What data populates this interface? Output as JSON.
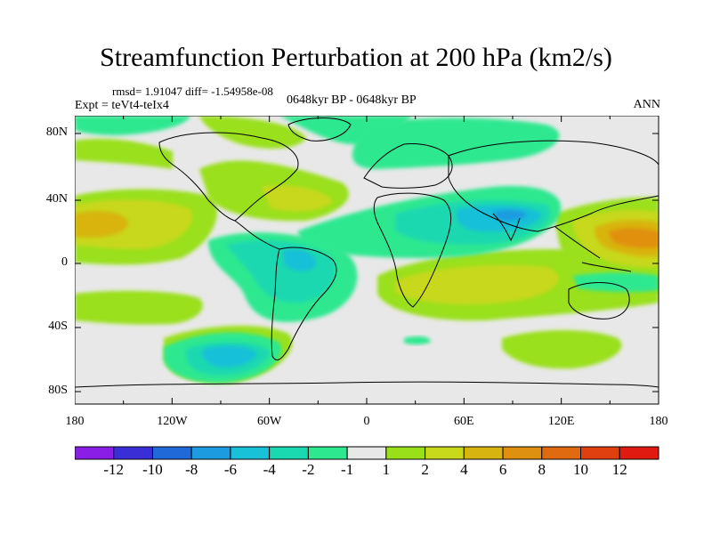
{
  "title": "Streamfunction Perturbation at 200 hPa (km2/s)",
  "stats": "rmsd= 1.91047 diff= -1.54958e-08",
  "experiment": "Expt = teVt4-teIx4",
  "period": "0648kyr BP - 0648kyr BP",
  "season": "ANN",
  "lat_labels": [
    "80N",
    "40N",
    "0",
    "40S",
    "80S"
  ],
  "lon_labels": [
    "180",
    "120W",
    "60W",
    "0",
    "60E",
    "120E",
    "180"
  ],
  "colorbar": {
    "colors": [
      "#8a1ee6",
      "#3a2fd6",
      "#1f6ad8",
      "#1c9be0",
      "#18c0d8",
      "#1ad8b0",
      "#2ee890",
      "#e8e8e8",
      "#9ae01a",
      "#c8d81a",
      "#d8b410",
      "#e09010",
      "#e06a10",
      "#e04010",
      "#e01a10"
    ],
    "labels": [
      "-12",
      "-10",
      "-8",
      "-6",
      "-4",
      "-2",
      "-1",
      "1",
      "2",
      "4",
      "6",
      "8",
      "10",
      "12"
    ]
  },
  "colors": {
    "neutral": "#e8e8e8",
    "pos_light": "#9ae01a",
    "pos_mid": "#c8d81a",
    "pos_strong": "#d8b410",
    "pos_orange": "#e09010",
    "neg_light": "#2ee890",
    "neg_mid": "#1ad8b0",
    "neg_strong": "#18c0d8",
    "neg_deep": "#1c9be0"
  }
}
